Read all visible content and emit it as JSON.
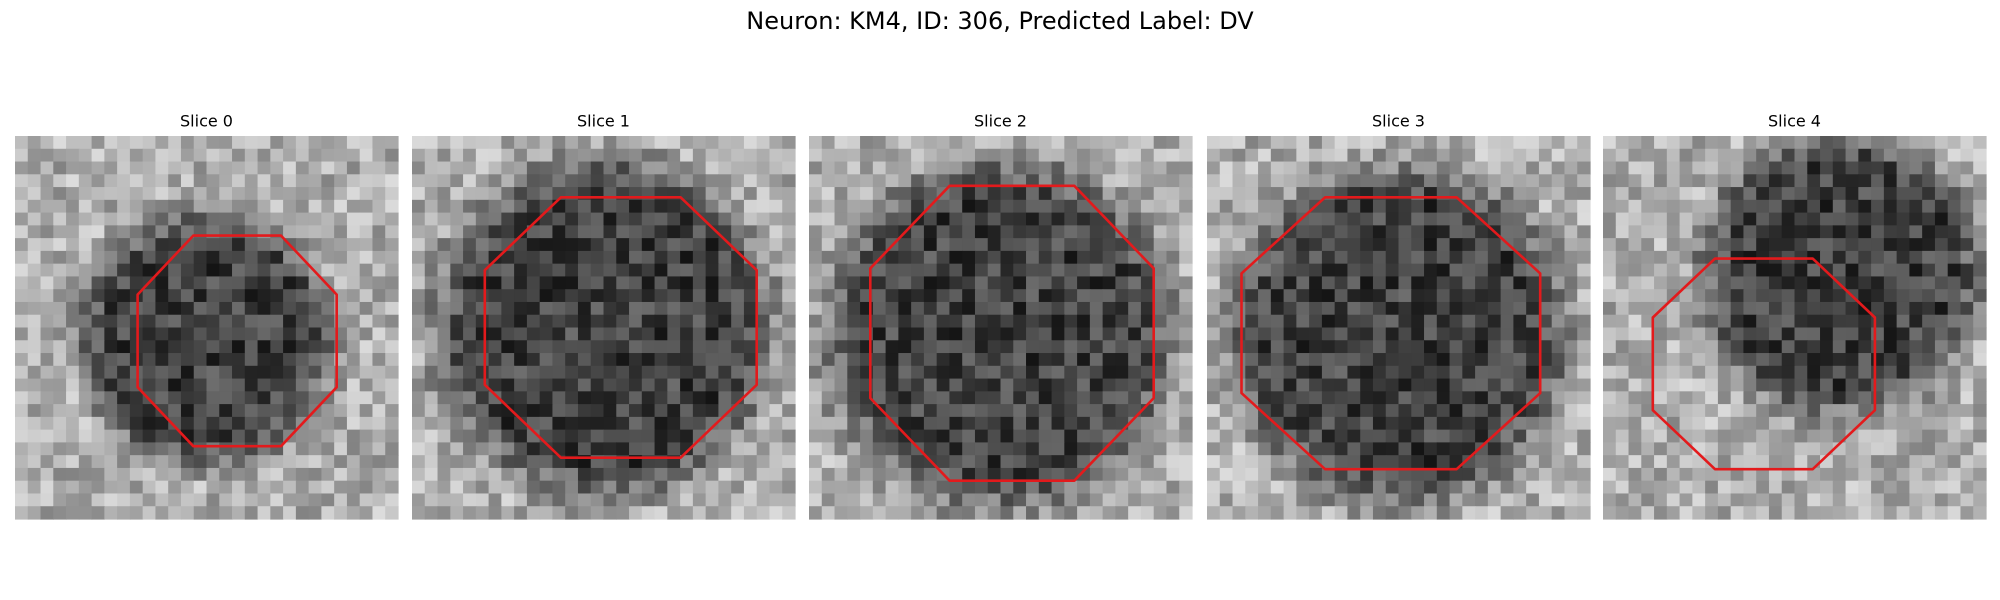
{
  "title": "Neuron: KM4, ID: 306, Predicted Label: DV",
  "panels": [
    {
      "title": "Slice 0"
    },
    {
      "title": "Slice 1"
    },
    {
      "title": "Slice 2"
    },
    {
      "title": "Slice 3"
    },
    {
      "title": "Slice 4"
    }
  ]
}
